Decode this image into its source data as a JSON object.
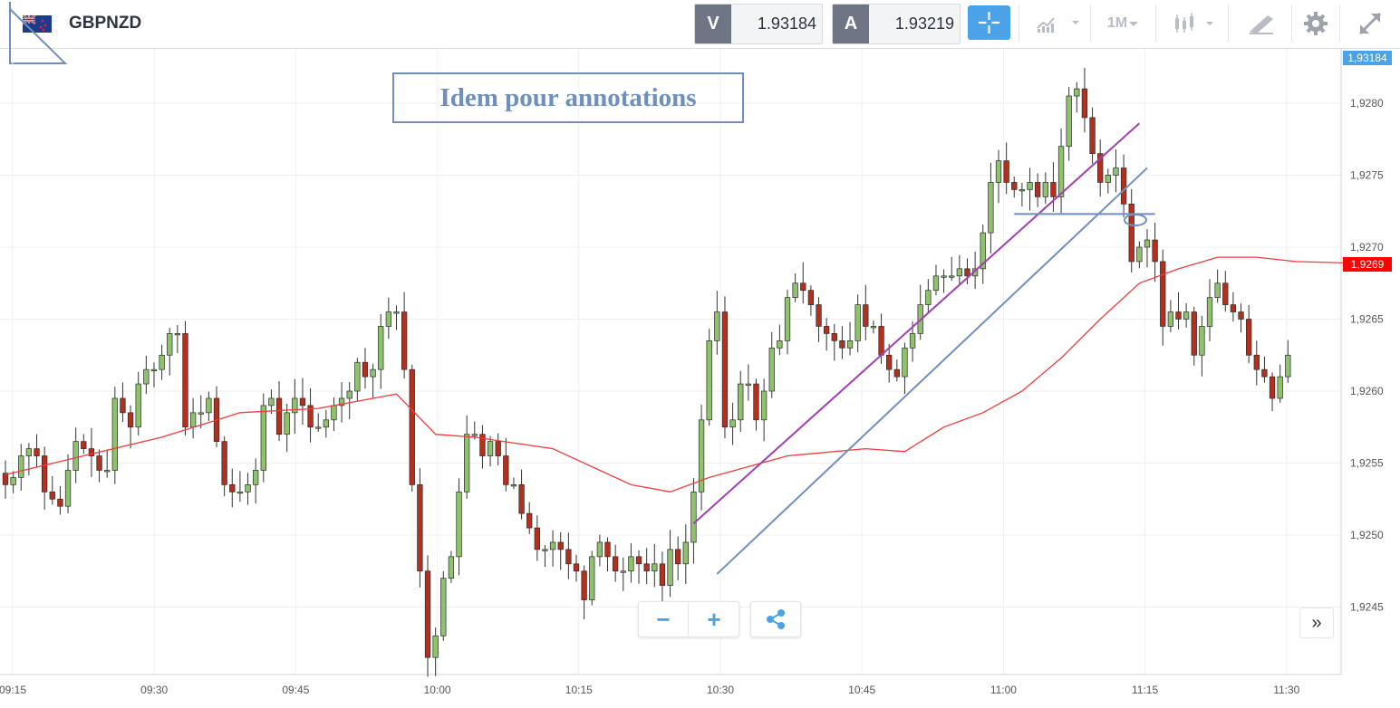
{
  "header": {
    "symbol": "GBPNZD",
    "sell_label": "V",
    "sell_price": "1.93184",
    "buy_label": "A",
    "buy_price": "1.93219",
    "timeframe": "1M",
    "crosshair_icon": "crosshair-icon",
    "chart_type_icon": "chart-type-icon",
    "candles_icon": "candlestick-icon",
    "draw_icon": "drawing-tools-icon",
    "settings_icon": "gear-icon",
    "fullscreen_icon": "expand-icon"
  },
  "annotation": "Idem pour annotations",
  "controls": {
    "zoom_out": "−",
    "zoom_in": "+",
    "share_icon": "share-icon",
    "scroll_right": "»"
  },
  "price_tags": {
    "last_price": "1,93184",
    "ma_value": "1,9269"
  },
  "colors": {
    "up_candle": "#8fc26c",
    "down_candle": "#b3301f",
    "ma_line": "#f03c3c",
    "trend_line_purple": "#a040b0",
    "trend_line_blue": "#6f8fbd",
    "accent": "#4aa3e8"
  },
  "chart_data": {
    "type": "candlestick",
    "timeframe": "1M",
    "symbol": "GBPNZD",
    "ylim": [
      1.9239,
      1.9287
    ],
    "y_ticks": [
      "1,9245",
      "1,9250",
      "1,9255",
      "1,9260",
      "1,9265",
      "1,9270",
      "1,9275",
      "1,9280"
    ],
    "x_ticks": [
      "09:15",
      "09:30",
      "09:45",
      "10:00",
      "10:15",
      "10:30",
      "10:45",
      "11:00",
      "11:15",
      "11:30"
    ],
    "candles_close": [
      1.92535,
      1.9254,
      1.92555,
      1.9256,
      1.92555,
      1.9253,
      1.92525,
      1.9252,
      1.92545,
      1.92565,
      1.9256,
      1.92555,
      1.92545,
      1.92545,
      1.92595,
      1.92585,
      1.92575,
      1.92605,
      1.92615,
      1.92615,
      1.92625,
      1.9264,
      1.9264,
      1.92575,
      1.92585,
      1.92585,
      1.92595,
      1.92565,
      1.92535,
      1.9253,
      1.9253,
      1.92535,
      1.92545,
      1.9259,
      1.92595,
      1.9257,
      1.92585,
      1.92595,
      1.9259,
      1.92575,
      1.92575,
      1.9258,
      1.9259,
      1.92595,
      1.926,
      1.9262,
      1.9261,
      1.92615,
      1.92645,
      1.92655,
      1.92655,
      1.92615,
      1.92535,
      1.92475,
      1.92415,
      1.9243,
      1.9247,
      1.92485,
      1.9253,
      1.9257,
      1.9257,
      1.92555,
      1.92565,
      1.92555,
      1.92535,
      1.92535,
      1.92515,
      1.92505,
      1.9249,
      1.9249,
      1.92495,
      1.9249,
      1.9248,
      1.92475,
      1.92455,
      1.92485,
      1.92495,
      1.92485,
      1.92475,
      1.92475,
      1.92485,
      1.9248,
      1.92475,
      1.9248,
      1.92465,
      1.9249,
      1.9248,
      1.92495,
      1.9253,
      1.9258,
      1.92635,
      1.92655,
      1.92575,
      1.9258,
      1.92605,
      1.92605,
      1.9258,
      1.926,
      1.9263,
      1.92635,
      1.92665,
      1.92675,
      1.9267,
      1.9266,
      1.92645,
      1.9264,
      1.92635,
      1.9263,
      1.92635,
      1.9266,
      1.92645,
      1.92645,
      1.92625,
      1.92615,
      1.9261,
      1.9263,
      1.9264,
      1.9266,
      1.9267,
      1.9268,
      1.9268,
      1.9268,
      1.92685,
      1.9268,
      1.92685,
      1.9271,
      1.92745,
      1.9276,
      1.92745,
      1.9274,
      1.9274,
      1.92745,
      1.92735,
      1.92745,
      1.92735,
      1.9277,
      1.92805,
      1.9281,
      1.9279,
      1.92765,
      1.92745,
      1.9275,
      1.92755,
      1.9273,
      1.9269,
      1.927,
      1.92705,
      1.9269,
      1.92645,
      1.92655,
      1.9265,
      1.92655,
      1.92625,
      1.92645,
      1.92665,
      1.92675,
      1.9266,
      1.92655,
      1.9265,
      1.92625,
      1.92615,
      1.9261,
      1.92595,
      1.9261,
      1.92625
    ],
    "candles_ohlc_note": "",
    "moving_average": {
      "color": "#f03c3c",
      "points": [
        [
          0,
          1.92542
        ],
        [
          10,
          1.92555
        ],
        [
          20,
          1.92568
        ],
        [
          30,
          1.92585
        ],
        [
          40,
          1.92588
        ],
        [
          50,
          1.92598
        ],
        [
          55,
          1.9257
        ],
        [
          60,
          1.92568
        ],
        [
          70,
          1.9256
        ],
        [
          80,
          1.92535
        ],
        [
          85,
          1.9253
        ],
        [
          90,
          1.9254
        ],
        [
          100,
          1.92555
        ],
        [
          110,
          1.9256
        ],
        [
          115,
          1.92558
        ],
        [
          120,
          1.92575
        ],
        [
          125,
          1.92585
        ],
        [
          130,
          1.926
        ],
        [
          135,
          1.92623
        ],
        [
          140,
          1.9265
        ],
        [
          145,
          1.92675
        ],
        [
          150,
          1.92685
        ],
        [
          155,
          1.92693
        ],
        [
          160,
          1.92693
        ],
        [
          165,
          1.9269
        ],
        [
          172,
          1.92689
        ]
      ],
      "last_value": "1,9269"
    },
    "trend_lines": [
      {
        "name": "",
        "color": "#a040b0",
        "from": [
          88,
          1.92508
        ],
        "to": [
          145,
          1.92786
        ]
      },
      {
        "name": "",
        "color": "#6f8fbd",
        "from": [
          91,
          1.92473
        ],
        "to": [
          146,
          1.92755
        ]
      },
      {
        "name": "",
        "color": "#6f8fbd",
        "horizontal": true,
        "from": [
          129,
          1.92723
        ],
        "to": [
          147,
          1.92723
        ]
      }
    ],
    "last_price": 1.93184
  }
}
